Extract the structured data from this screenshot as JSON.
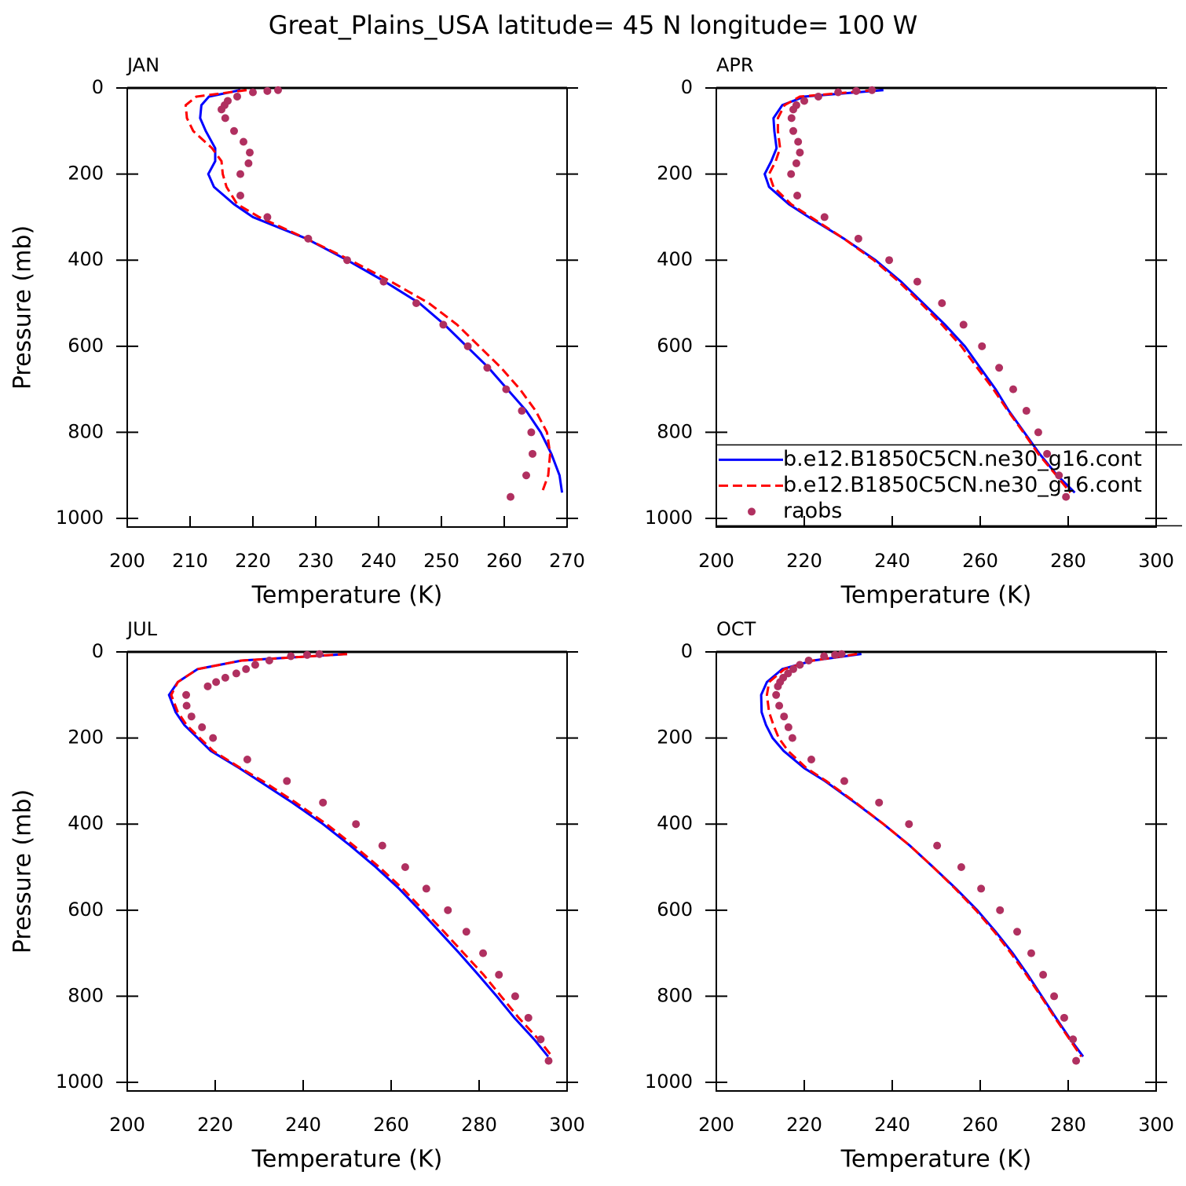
{
  "title": "Great_Plains_USA  latitude= 45 N longitude= 100 W",
  "chart_data": [
    {
      "type": "line",
      "title": "JAN",
      "xlabel": "Temperature (K)",
      "ylabel": "Pressure (mb)",
      "xlim": [
        200,
        270
      ],
      "xticks": [
        200,
        210,
        220,
        230,
        240,
        250,
        260,
        270
      ],
      "ylim": [
        1020,
        0
      ],
      "yticks": [
        0,
        200,
        400,
        600,
        800,
        1000
      ],
      "series": [
        {
          "color": "#0000ff",
          "style": "solid",
          "levels": [
            5,
            20,
            40,
            70,
            100,
            140,
            170,
            200,
            230,
            270,
            300,
            350,
            400,
            450,
            500,
            550,
            600,
            650,
            700,
            750,
            800,
            850,
            900,
            940
          ],
          "values": [
            218,
            213,
            211.8,
            211.6,
            212.5,
            214,
            214,
            212.9,
            213.8,
            217,
            220,
            228.5,
            235,
            241,
            246.5,
            250.5,
            254,
            257.5,
            260.5,
            263.5,
            265.8,
            267.5,
            268.8,
            269.2
          ]
        },
        {
          "color": "#ff0000",
          "style": "dashed",
          "levels": [
            5,
            20,
            40,
            70,
            100,
            140,
            170,
            200,
            230,
            270,
            300,
            350,
            400,
            450,
            500,
            550,
            600,
            650,
            700,
            750,
            800,
            850,
            900,
            940
          ],
          "values": [
            219,
            211,
            209.3,
            209.5,
            210.5,
            213.5,
            215,
            215.2,
            215.8,
            217.5,
            221,
            228.5,
            235.5,
            242,
            248,
            252.5,
            256,
            259.5,
            262.5,
            265,
            266.8,
            267.3,
            267,
            266
          ]
        },
        {
          "color": "#b03060",
          "style": "markers",
          "levels": [
            5,
            7,
            10,
            20,
            30,
            40,
            50,
            70,
            100,
            125,
            150,
            175,
            200,
            250,
            300,
            350,
            400,
            450,
            500,
            550,
            600,
            650,
            700,
            750,
            800,
            850,
            900,
            950
          ],
          "values": [
            224,
            222.3,
            220,
            217.5,
            216,
            215.5,
            215,
            215.6,
            217,
            218.5,
            219.5,
            219.3,
            218,
            218,
            222.3,
            228.8,
            235,
            240.8,
            246,
            250.3,
            254.2,
            257.3,
            260.3,
            262.8,
            264.3,
            264.5,
            263.5,
            261
          ]
        }
      ]
    },
    {
      "type": "line",
      "title": "APR",
      "xlabel": "Temperature (K)",
      "legend": "lower right",
      "xlim": [
        200,
        300
      ],
      "xticks": [
        200,
        220,
        240,
        260,
        280,
        300
      ],
      "ylim": [
        1020,
        0
      ],
      "yticks": [
        0,
        200,
        400,
        600,
        800,
        1000
      ],
      "series": [
        {
          "name": "b.e12.B1850C5CN.ne30_g16.cont",
          "color": "#0000ff",
          "style": "solid",
          "levels": [
            5,
            20,
            40,
            70,
            100,
            140,
            170,
            200,
            230,
            270,
            300,
            350,
            400,
            450,
            500,
            550,
            600,
            650,
            700,
            750,
            800,
            850,
            900,
            940
          ],
          "values": [
            238,
            220,
            215,
            213,
            213.2,
            213.7,
            212.5,
            211,
            212,
            216.5,
            221,
            229,
            236.2,
            242,
            247,
            252,
            256.5,
            260,
            263.5,
            266.5,
            270,
            273.5,
            277.5,
            281.5
          ]
        },
        {
          "name": "b.e12.B1850C5CN.ne30_g16.cont",
          "color": "#ff0000",
          "style": "dashed",
          "levels": [
            5,
            20,
            40,
            70,
            100,
            140,
            170,
            200,
            230,
            270,
            300,
            350,
            400,
            450,
            500,
            550,
            600,
            650,
            700,
            750,
            800,
            850,
            900,
            940
          ],
          "values": [
            236,
            219,
            215.5,
            214,
            214,
            214.5,
            213.5,
            212,
            213,
            217,
            221.5,
            229,
            235.8,
            241.5,
            246.5,
            251.3,
            255.7,
            259.3,
            263,
            266.3,
            269.8,
            273.2,
            277.3,
            280.5
          ]
        },
        {
          "name": "raobs",
          "color": "#b03060",
          "style": "markers",
          "levels": [
            5,
            7,
            10,
            20,
            30,
            40,
            50,
            70,
            100,
            125,
            150,
            175,
            200,
            250,
            300,
            350,
            400,
            450,
            500,
            550,
            600,
            650,
            700,
            750,
            800,
            850,
            900,
            950
          ],
          "values": [
            235.4,
            231.8,
            227.7,
            223.2,
            220,
            218.2,
            217.5,
            217.1,
            217.5,
            218.6,
            219,
            218.2,
            217,
            218.4,
            224.6,
            232.3,
            239.3,
            245.7,
            251.3,
            256.2,
            260.4,
            264.3,
            267.5,
            270.5,
            273.2,
            275.2,
            277.9,
            279.5
          ]
        }
      ]
    },
    {
      "type": "line",
      "title": "JUL",
      "xlabel": "Temperature (K)",
      "ylabel": "Pressure (mb)",
      "xlim": [
        200,
        300
      ],
      "xticks": [
        200,
        220,
        240,
        260,
        280,
        300
      ],
      "ylim": [
        1020,
        0
      ],
      "yticks": [
        0,
        200,
        400,
        600,
        800,
        1000
      ],
      "series": [
        {
          "color": "#0000ff",
          "style": "solid",
          "levels": [
            5,
            20,
            40,
            70,
            100,
            140,
            170,
            200,
            230,
            270,
            300,
            350,
            400,
            450,
            500,
            550,
            600,
            650,
            700,
            750,
            800,
            850,
            900,
            940
          ],
          "values": [
            250,
            226,
            216,
            211.5,
            209.5,
            211,
            213,
            216,
            219,
            225.5,
            230,
            237.5,
            244.5,
            250.7,
            256.5,
            261.8,
            266.5,
            271,
            275.5,
            279.8,
            284,
            288,
            292.5,
            295.7
          ]
        },
        {
          "color": "#ff0000",
          "style": "dashed",
          "levels": [
            5,
            20,
            40,
            70,
            100,
            140,
            170,
            200,
            230,
            270,
            300,
            350,
            400,
            450,
            500,
            550,
            600,
            650,
            700,
            750,
            800,
            850,
            900,
            940
          ],
          "values": [
            250,
            226,
            216,
            211.5,
            210,
            211.5,
            213.5,
            216.5,
            219.5,
            225.8,
            230.8,
            238.3,
            245.3,
            251.5,
            257.3,
            262.6,
            267.3,
            272,
            276.5,
            281,
            285,
            289,
            293.5,
            296.6
          ]
        },
        {
          "color": "#b03060",
          "style": "markers",
          "levels": [
            5,
            7,
            10,
            20,
            30,
            40,
            50,
            60,
            70,
            80,
            100,
            125,
            150,
            175,
            200,
            250,
            300,
            350,
            400,
            450,
            500,
            550,
            600,
            650,
            700,
            750,
            800,
            850,
            900,
            950
          ],
          "values": [
            243.7,
            240.9,
            237.2,
            232.3,
            229.1,
            227,
            224.8,
            222.3,
            220.2,
            218.3,
            213.4,
            213.5,
            214.6,
            217,
            219.5,
            227.3,
            236.3,
            244.5,
            252,
            258,
            263.2,
            268,
            272.9,
            277.1,
            280.9,
            284.5,
            288.2,
            291.2,
            294,
            295.8
          ]
        }
      ]
    },
    {
      "type": "line",
      "title": "OCT",
      "xlabel": "Temperature (K)",
      "xlim": [
        200,
        300
      ],
      "xticks": [
        200,
        220,
        240,
        260,
        280,
        300
      ],
      "ylim": [
        1020,
        0
      ],
      "yticks": [
        0,
        200,
        400,
        600,
        800,
        1000
      ],
      "series": [
        {
          "color": "#0000ff",
          "style": "solid",
          "levels": [
            5,
            20,
            40,
            70,
            100,
            140,
            170,
            200,
            230,
            270,
            300,
            350,
            400,
            450,
            500,
            550,
            600,
            650,
            700,
            750,
            800,
            850,
            900,
            940
          ],
          "values": [
            233,
            222,
            215,
            211.5,
            210.2,
            210.3,
            211.3,
            212.8,
            215.3,
            220,
            224.7,
            231.5,
            238,
            244,
            249.3,
            254.5,
            259.3,
            263.5,
            267.4,
            270.8,
            274,
            277.2,
            280.5,
            283.4
          ]
        },
        {
          "color": "#ff0000",
          "style": "dashed",
          "levels": [
            5,
            20,
            40,
            70,
            100,
            140,
            170,
            200,
            230,
            270,
            300,
            350,
            400,
            450,
            500,
            550,
            600,
            650,
            700,
            750,
            800,
            850,
            900,
            940
          ],
          "values": [
            232,
            222,
            215.5,
            212,
            211.5,
            212,
            213,
            214.2,
            216.3,
            220.5,
            225,
            231.7,
            238,
            244,
            249.3,
            254.3,
            259,
            263.2,
            267,
            270.5,
            273.8,
            277,
            280.3,
            283
          ]
        },
        {
          "color": "#b03060",
          "style": "markers",
          "levels": [
            5,
            7,
            10,
            20,
            30,
            40,
            50,
            60,
            70,
            80,
            100,
            125,
            150,
            175,
            200,
            250,
            300,
            350,
            400,
            450,
            500,
            550,
            600,
            650,
            700,
            750,
            800,
            850,
            900,
            950
          ],
          "values": [
            228.5,
            227,
            224.5,
            221,
            219,
            217.5,
            216.3,
            215.2,
            214.5,
            214,
            213.6,
            214.3,
            215.4,
            216.4,
            217.3,
            221.6,
            229.1,
            237,
            243.8,
            250.2,
            255.7,
            260.2,
            264.5,
            268.4,
            271.6,
            274.3,
            276.8,
            279.1,
            281.1,
            281.8
          ]
        }
      ]
    }
  ]
}
